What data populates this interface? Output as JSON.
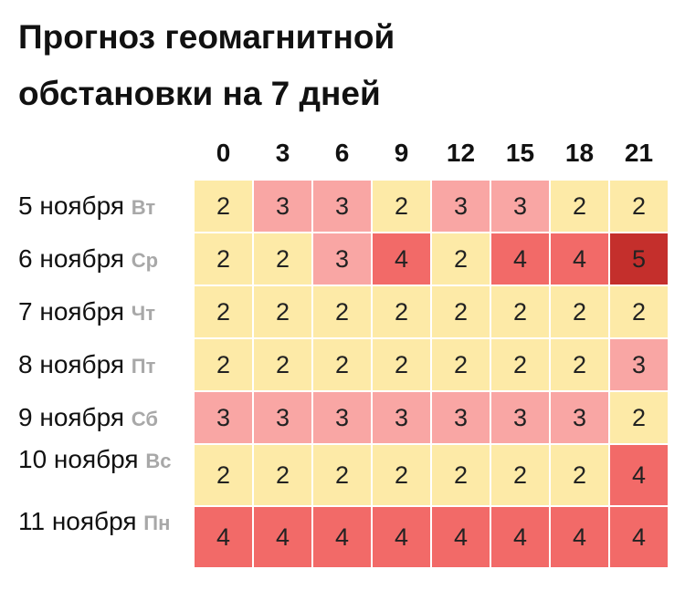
{
  "title": "Прогноз геомагнитной обстановки на 7 дней",
  "table": {
    "columns": [
      0,
      3,
      6,
      9,
      12,
      15,
      18,
      21
    ],
    "rows": [
      {
        "date": "5 ноября",
        "weekday": "Вт",
        "values": [
          2,
          3,
          3,
          2,
          3,
          3,
          2,
          2
        ]
      },
      {
        "date": "6 ноября",
        "weekday": "Ср",
        "values": [
          2,
          2,
          3,
          4,
          2,
          4,
          4,
          5
        ]
      },
      {
        "date": "7 ноября",
        "weekday": "Чт",
        "values": [
          2,
          2,
          2,
          2,
          2,
          2,
          2,
          2
        ]
      },
      {
        "date": "8 ноября",
        "weekday": "Пт",
        "values": [
          2,
          2,
          2,
          2,
          2,
          2,
          2,
          3
        ]
      },
      {
        "date": "9 ноября",
        "weekday": "Сб",
        "values": [
          3,
          3,
          3,
          3,
          3,
          3,
          3,
          2
        ]
      },
      {
        "date": "10 ноября",
        "weekday": "Вс",
        "values": [
          2,
          2,
          2,
          2,
          2,
          2,
          2,
          4
        ]
      },
      {
        "date": "11 ноября",
        "weekday": "Пн",
        "values": [
          4,
          4,
          4,
          4,
          4,
          4,
          4,
          4
        ]
      }
    ],
    "colors": {
      "2": "#fdeaa7",
      "3": "#f9a6a4",
      "4": "#f26a68",
      "5": "#c42f2c"
    }
  }
}
